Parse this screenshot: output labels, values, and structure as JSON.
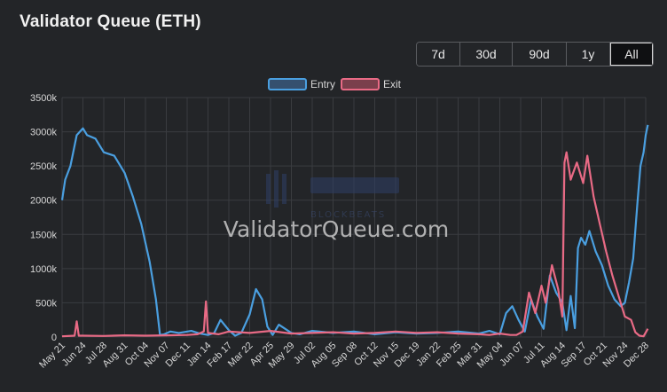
{
  "title": "Validator Queue (ETH)",
  "range_buttons": [
    "7d",
    "30d",
    "90d",
    "1y",
    "All"
  ],
  "active_range": "All",
  "watermark": {
    "main": "ValidatorQueue.com",
    "sub": "BLOCKBEATS"
  },
  "colors": {
    "entry": "#4a9fe0",
    "exit": "#e86a85",
    "grid": "#3a3c40",
    "axis_text": "#d6d6d6"
  },
  "chart_data": {
    "type": "line",
    "ylabel": "",
    "xlabel": "",
    "ylim": [
      0,
      3500
    ],
    "yticks": [
      0,
      500,
      1000,
      1500,
      2000,
      2500,
      3000,
      3500
    ],
    "ytick_labels": [
      "0",
      "500k",
      "1000k",
      "1500k",
      "2000k",
      "2500k",
      "3000k",
      "3500k"
    ],
    "xtick_labels": [
      "May 21",
      "Jun 24",
      "Jul 28",
      "Aug 31",
      "Oct 04",
      "Nov 07",
      "Dec 11",
      "Jan 14",
      "Feb 17",
      "Mar 22",
      "Apr 25",
      "May 29",
      "Jul 02",
      "Aug 05",
      "Sep 08",
      "Oct 12",
      "Nov 15",
      "Dec 19",
      "Jan 22",
      "Feb 25",
      "Mar 31",
      "May 04",
      "Jun 07",
      "Jul 11",
      "Aug 14",
      "Sep 17",
      "Oct 21",
      "Nov 24",
      "Dec 28"
    ],
    "legend": "top-center",
    "grid": true,
    "series": [
      {
        "name": "Entry",
        "color": "#4a9fe0",
        "x": [
          0,
          0.15,
          0.4,
          0.7,
          1.0,
          1.2,
          1.6,
          2.0,
          2.5,
          3.0,
          3.4,
          3.8,
          4.2,
          4.5,
          4.7,
          4.9,
          5.2,
          5.6,
          6.2,
          6.6,
          7.0,
          7.3,
          7.6,
          8.0,
          8.3,
          8.6,
          9.0,
          9.3,
          9.6,
          9.85,
          10.1,
          10.4,
          10.7,
          11.0,
          11.4,
          12,
          13,
          14,
          15,
          16,
          17,
          18,
          19,
          20,
          20.5,
          21,
          21.3,
          21.6,
          21.9,
          22.2,
          22.5,
          22.8,
          23.1,
          23.4,
          23.7,
          24.0,
          24.2,
          24.4,
          24.6,
          24.75,
          24.9,
          25.1,
          25.3,
          25.6,
          25.9,
          26.2,
          26.5,
          26.8,
          27.0,
          27.2,
          27.4,
          27.6,
          27.75,
          27.9,
          28.0,
          28.1
        ],
        "y": [
          2000,
          2300,
          2500,
          2950,
          3050,
          2950,
          2900,
          2700,
          2650,
          2400,
          2050,
          1650,
          1100,
          550,
          30,
          40,
          80,
          60,
          90,
          50,
          30,
          60,
          250,
          100,
          20,
          60,
          330,
          700,
          550,
          150,
          30,
          180,
          120,
          60,
          40,
          90,
          60,
          80,
          40,
          70,
          50,
          60,
          80,
          50,
          90,
          40,
          350,
          450,
          250,
          80,
          550,
          300,
          120,
          900,
          650,
          500,
          100,
          600,
          130,
          1300,
          1450,
          1350,
          1550,
          1250,
          1050,
          750,
          550,
          450,
          500,
          800,
          1150,
          1950,
          2500,
          2700,
          2950,
          3100
        ]
      },
      {
        "name": "Exit",
        "color": "#e86a85",
        "x": [
          0,
          0.6,
          0.7,
          0.8,
          1.0,
          2,
          3,
          4,
          5,
          6,
          6.5,
          6.8,
          6.9,
          7.0,
          7.5,
          8,
          9,
          10,
          11,
          12,
          13,
          14,
          15,
          16,
          17,
          18,
          19,
          20,
          20.5,
          21,
          21.5,
          21.8,
          22.1,
          22.4,
          22.7,
          23.0,
          23.2,
          23.5,
          23.8,
          24.0,
          24.1,
          24.2,
          24.4,
          24.7,
          25.0,
          25.2,
          25.5,
          25.8,
          26.1,
          26.4,
          26.7,
          27.0,
          27.3,
          27.5,
          27.7,
          27.9,
          28.1
        ],
        "y": [
          10,
          20,
          230,
          20,
          20,
          15,
          25,
          20,
          25,
          30,
          40,
          80,
          520,
          60,
          40,
          80,
          60,
          90,
          50,
          60,
          70,
          50,
          60,
          80,
          60,
          70,
          50,
          40,
          30,
          50,
          30,
          30,
          80,
          650,
          350,
          750,
          500,
          1050,
          700,
          300,
          2550,
          2700,
          2300,
          2550,
          2250,
          2650,
          2050,
          1650,
          1250,
          900,
          600,
          300,
          250,
          70,
          20,
          10,
          120
        ]
      }
    ]
  }
}
